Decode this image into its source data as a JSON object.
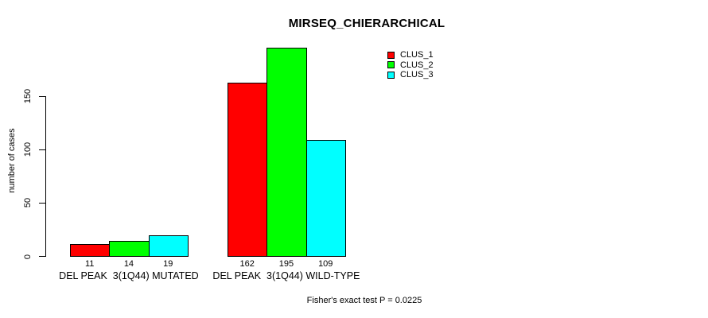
{
  "title": "MIRSEQ_CHIERARCHICAL",
  "footnote": "Fisher's exact test P = 0.0225",
  "colors": {
    "bar_red": "#ff0000",
    "bar_green": "#00ff00",
    "bar_cyan": "#00ffff",
    "axis": "#000000",
    "background": "#ffffff"
  },
  "chart_data": {
    "type": "bar",
    "title": "MIRSEQ_CHIERARCHICAL",
    "xlabel": "",
    "ylabel": "number of cases",
    "categories": [
      "DEL PEAK  3(1Q44) MUTATED",
      "DEL PEAK  3(1Q44) WILD-TYPE"
    ],
    "series": [
      {
        "name": "CLUS_1",
        "color": "#ff0000",
        "values": [
          11,
          162
        ]
      },
      {
        "name": "CLUS_2",
        "color": "#00ff00",
        "values": [
          14,
          195
        ]
      },
      {
        "name": "CLUS_3",
        "color": "#00ffff",
        "values": [
          19,
          109
        ]
      }
    ],
    "yticks": [
      0,
      50,
      100,
      150
    ],
    "ylim": [
      0,
      200
    ],
    "grid": false,
    "legend_position": "inside-top-right-of-plot",
    "bar_labels_shown": true,
    "annotation": "Fisher's exact test P = 0.0225"
  }
}
